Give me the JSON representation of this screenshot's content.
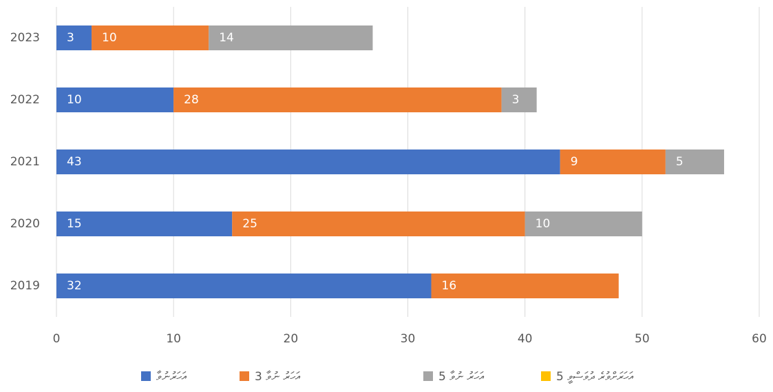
{
  "chart_data": {
    "type": "bar",
    "orientation": "horizontal",
    "stacked": true,
    "categories": [
      "2019",
      "2020",
      "2021",
      "2022",
      "2023"
    ],
    "series": [
      {
        "name": "އަހަރުނުވާ",
        "color": "#4472c4",
        "values": [
          32,
          15,
          43,
          10,
          3
        ]
      },
      {
        "name": "3 އަހަރު ނުވާ",
        "color": "#ed7d31",
        "values": [
          16,
          25,
          9,
          28,
          10
        ]
      },
      {
        "name": "5 އަހަރު ނުވާ",
        "color": "#a5a5a5",
        "values": [
          null,
          10,
          5,
          3,
          14
        ]
      },
      {
        "name": "5 އަހަރަށްވުރެ ދުވަސްވީ",
        "color": "#ffc000",
        "values": [
          null,
          null,
          null,
          null,
          null
        ]
      }
    ],
    "xlim": [
      0,
      60
    ],
    "xticks": [
      0,
      10,
      20,
      30,
      40,
      50,
      60
    ],
    "grid": true,
    "legend": "bottom"
  }
}
